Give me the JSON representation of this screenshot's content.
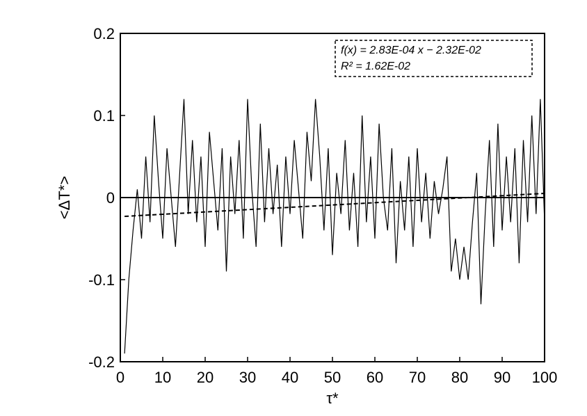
{
  "chart_data": {
    "type": "line",
    "xlabel": "τ*",
    "ylabel": "<ΔT*>",
    "annotations": [
      "f(x) = 2.83E-04 x − 2.32E-02",
      "R² = 1.62E-02"
    ],
    "x": [
      1,
      2,
      3,
      4,
      5,
      6,
      7,
      8,
      9,
      10,
      11,
      12,
      13,
      14,
      15,
      16,
      17,
      18,
      19,
      20,
      21,
      22,
      23,
      24,
      25,
      26,
      27,
      28,
      29,
      30,
      31,
      32,
      33,
      34,
      35,
      36,
      37,
      38,
      39,
      40,
      41,
      42,
      43,
      44,
      45,
      46,
      47,
      48,
      49,
      50,
      51,
      52,
      53,
      54,
      55,
      56,
      57,
      58,
      59,
      60,
      61,
      62,
      63,
      64,
      65,
      66,
      67,
      68,
      69,
      70,
      71,
      72,
      73,
      74,
      75,
      76,
      77,
      78,
      79,
      80,
      81,
      82,
      83,
      84,
      85,
      86,
      87,
      88,
      89,
      90,
      91,
      92,
      93,
      94,
      95,
      96,
      97,
      98,
      99,
      100
    ],
    "series": [
      {
        "color": "#000000",
        "dash": false,
        "values": [
          -0.19,
          -0.1,
          -0.04,
          0.01,
          -0.05,
          0.05,
          -0.03,
          0.1,
          0.02,
          -0.05,
          0.06,
          0.0,
          -0.06,
          0.03,
          0.12,
          -0.02,
          0.07,
          -0.03,
          0.05,
          -0.06,
          0.08,
          0.02,
          -0.04,
          0.06,
          -0.09,
          0.05,
          -0.02,
          0.07,
          -0.05,
          0.12,
          0.01,
          -0.06,
          0.09,
          -0.03,
          0.06,
          -0.02,
          0.04,
          -0.06,
          0.05,
          -0.02,
          0.07,
          0.01,
          -0.05,
          0.08,
          0.02,
          0.12,
          0.05,
          -0.04,
          0.06,
          -0.07,
          0.03,
          -0.02,
          0.07,
          -0.04,
          0.03,
          -0.06,
          0.1,
          -0.03,
          0.05,
          -0.05,
          0.09,
          0.0,
          -0.04,
          0.06,
          -0.08,
          0.02,
          -0.04,
          0.05,
          -0.06,
          0.06,
          -0.03,
          0.03,
          -0.05,
          0.02,
          -0.02,
          0.01,
          0.05,
          -0.09,
          -0.05,
          -0.1,
          -0.06,
          -0.1,
          -0.03,
          0.03,
          -0.13,
          -0.02,
          0.07,
          -0.06,
          0.09,
          -0.04,
          0.05,
          -0.03,
          0.06,
          -0.08,
          0.07,
          -0.03,
          0.1,
          -0.02,
          0.12,
          -0.03
        ]
      },
      {
        "color": "#000000",
        "dash": true,
        "x": [
          1,
          100
        ],
        "values": [
          -0.0229,
          0.0051
        ]
      }
    ],
    "hlines": [
      0
    ],
    "xlim": [
      0,
      100
    ],
    "xticks": [
      0,
      10,
      20,
      30,
      40,
      50,
      60,
      70,
      80,
      90,
      100
    ],
    "ylim": [
      -0.2,
      0.2
    ],
    "yticks": [
      -0.2,
      -0.1,
      0,
      0.1,
      0.2
    ]
  }
}
